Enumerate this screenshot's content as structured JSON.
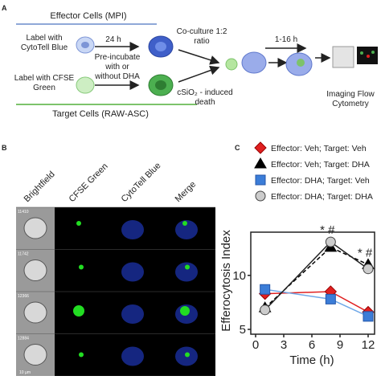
{
  "panel_a": {
    "label": "A",
    "effector_header": "Effector Cells (MPI)",
    "effector_label": "Label with CytoTell Blue",
    "time_24h": "24 h",
    "preincubate": "Pre-incubate with or without DHA",
    "target_label": "Label with CFSE Green",
    "target_header": "Target Cells (RAW-ASC)",
    "coculture": "Co-culture 1:2 ratio",
    "death": "cSiO₂ - induced death",
    "time_1_16": "1-16 h",
    "readout": "Imaging Flow Cytometry"
  },
  "panel_b": {
    "label": "B",
    "columns": [
      "Brightfield",
      "CFSE Green",
      "CytoTell Blue",
      "Merge"
    ],
    "image_ids": [
      "11410",
      "11742",
      "12366",
      "12884"
    ],
    "scale_bar": "10 µm"
  },
  "chart_data": {
    "type": "line",
    "label": "C",
    "x_label": "Time (h)",
    "y_label": "Efferocytosis Index",
    "x": [
      1,
      8,
      12
    ],
    "xlim": [
      0,
      12
    ],
    "xticks": [
      0,
      3,
      6,
      9,
      12
    ],
    "ylim": [
      5,
      14
    ],
    "yticks": [
      5,
      10
    ],
    "series": [
      {
        "name": "Effector: Veh; Target: Veh",
        "color": "#e02020",
        "marker": "diamond",
        "dashed": false,
        "values": [
          8.3,
          8.5,
          6.6
        ]
      },
      {
        "name": "Effector: Veh; Target: DHA",
        "color": "#000000",
        "marker": "triangle",
        "dashed": true,
        "values": [
          7.0,
          12.6,
          11.0
        ]
      },
      {
        "name": "Effector: DHA; Target: Veh",
        "color": "#3b7dd8",
        "marker": "square",
        "dashed": false,
        "values": [
          8.7,
          7.8,
          6.2
        ]
      },
      {
        "name": "Effector: DHA; Target: DHA",
        "color": "#cccccc",
        "marker": "circle",
        "dashed": false,
        "values": [
          6.8,
          13.1,
          10.6
        ]
      }
    ],
    "annotations": [
      {
        "text": "* #",
        "x": 8
      },
      {
        "text": "* #",
        "x": 12
      }
    ]
  }
}
